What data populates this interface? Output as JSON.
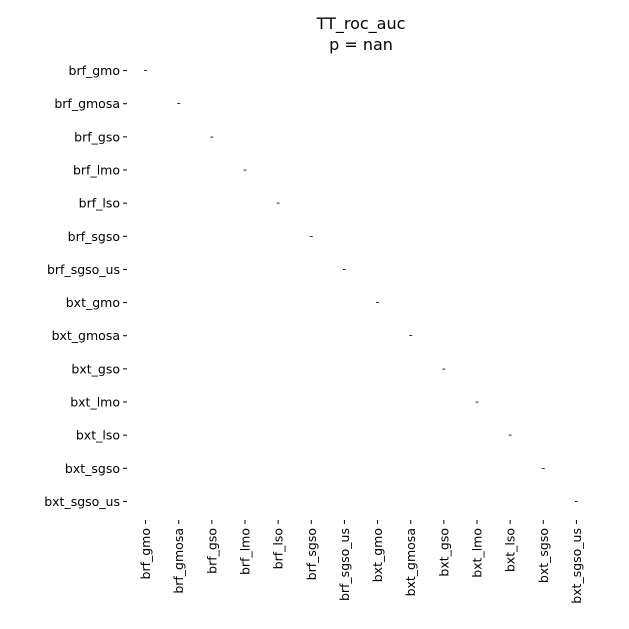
{
  "chart_data": {
    "type": "heatmap",
    "title": "TT_roc_auc",
    "subtitle": "p = nan",
    "xlabel": "",
    "ylabel": "",
    "grid": false,
    "legend": "none",
    "categories": [
      "brf_gmo",
      "brf_gmosa",
      "brf_gso",
      "brf_lmo",
      "brf_lso",
      "brf_sgso",
      "brf_sgso_us",
      "bxt_gmo",
      "bxt_gmosa",
      "bxt_gso",
      "bxt_lmo",
      "bxt_lso",
      "bxt_sgso",
      "bxt_sgso_us"
    ],
    "diagonal_annotation": "-",
    "values": null
  }
}
